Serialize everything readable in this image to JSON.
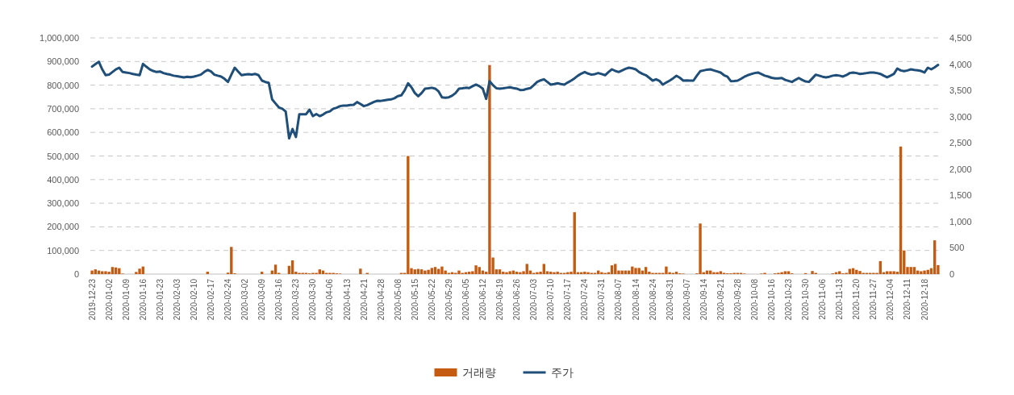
{
  "chart_data": {
    "type": "bar",
    "categories": [
      "2019-12-23",
      null,
      null,
      null,
      null,
      "2020-01-02",
      null,
      null,
      null,
      null,
      "2020-01-09",
      null,
      null,
      null,
      null,
      "2020-01-16",
      null,
      null,
      null,
      null,
      "2020-01-23",
      null,
      null,
      null,
      null,
      "2020-02-03",
      null,
      null,
      null,
      null,
      "2020-02-10",
      null,
      null,
      null,
      null,
      "2020-02-17",
      null,
      null,
      null,
      null,
      "2020-02-24",
      null,
      null,
      null,
      null,
      "2020-03-02",
      null,
      null,
      null,
      null,
      "2020-03-09",
      null,
      null,
      null,
      null,
      "2020-03-16",
      null,
      null,
      null,
      null,
      "2020-03-23",
      null,
      null,
      null,
      null,
      "2020-03-30",
      null,
      null,
      null,
      null,
      "2020-04-06",
      null,
      null,
      null,
      null,
      "2020-04-13",
      null,
      null,
      null,
      null,
      "2020-04-21",
      null,
      null,
      null,
      null,
      "2020-04-28",
      null,
      null,
      null,
      null,
      "2020-05-08",
      null,
      null,
      null,
      null,
      "2020-05-15",
      null,
      null,
      null,
      null,
      "2020-05-22",
      null,
      null,
      null,
      null,
      "2020-05-29",
      null,
      null,
      null,
      null,
      "2020-06-05",
      null,
      null,
      null,
      null,
      "2020-06-12",
      null,
      null,
      null,
      null,
      "2020-06-19",
      null,
      null,
      null,
      null,
      "2020-06-26",
      null,
      null,
      null,
      null,
      "2020-07-03",
      null,
      null,
      null,
      null,
      "2020-07-10",
      null,
      null,
      null,
      null,
      "2020-07-17",
      null,
      null,
      null,
      null,
      "2020-07-24",
      null,
      null,
      null,
      null,
      "2020-07-31",
      null,
      null,
      null,
      null,
      "2020-08-07",
      null,
      null,
      null,
      null,
      "2020-08-14",
      null,
      null,
      null,
      null,
      "2020-08-24",
      null,
      null,
      null,
      null,
      "2020-08-31",
      null,
      null,
      null,
      null,
      "2020-09-07",
      null,
      null,
      null,
      null,
      "2020-09-14",
      null,
      null,
      null,
      null,
      "2020-09-21",
      null,
      null,
      null,
      null,
      "2020-09-28",
      null,
      null,
      null,
      null,
      "2020-10-08",
      null,
      null,
      null,
      null,
      "2020-10-16",
      null,
      null,
      null,
      null,
      "2020-10-23",
      null,
      null,
      null,
      null,
      "2020-10-30",
      null,
      null,
      null,
      null,
      "2020-11-06",
      null,
      null,
      null,
      null,
      "2020-11-13",
      null,
      null,
      null,
      null,
      "2020-11-20",
      null,
      null,
      null,
      null,
      "2020-11-27",
      null,
      null,
      null,
      null,
      "2020-12-04",
      null,
      null,
      null,
      null,
      "2020-12-11",
      null,
      null,
      null,
      null,
      "2020-12-18",
      null,
      null,
      null,
      null
    ],
    "series": [
      {
        "name": "거래량",
        "color": "#c55a11",
        "values": [
          15000,
          20000,
          15000,
          12000,
          12000,
          10000,
          30000,
          28000,
          25000,
          2000,
          0,
          0,
          0,
          9000,
          23000,
          32000,
          0,
          0,
          0,
          0,
          0,
          0,
          0,
          0,
          0,
          0,
          0,
          0,
          0,
          0,
          0,
          0,
          0,
          0,
          10000,
          0,
          0,
          0,
          0,
          0,
          6000,
          115000,
          3000,
          0,
          0,
          0,
          0,
          0,
          0,
          0,
          10000,
          0,
          0,
          15000,
          40000,
          5000,
          0,
          0,
          35000,
          58000,
          10000,
          5000,
          5000,
          5000,
          3000,
          5000,
          5000,
          20000,
          15000,
          5000,
          5000,
          5000,
          3000,
          2000,
          0,
          0,
          0,
          0,
          0,
          23000,
          0,
          5000,
          0,
          0,
          0,
          0,
          0,
          0,
          0,
          0,
          0,
          5000,
          5000,
          500000,
          25000,
          20000,
          22000,
          20000,
          15000,
          18000,
          26000,
          30000,
          22000,
          32000,
          15000,
          5000,
          8000,
          5000,
          15000,
          5000,
          8000,
          10000,
          12000,
          37000,
          30000,
          15000,
          10000,
          885000,
          70000,
          20000,
          20000,
          10000,
          8000,
          12000,
          15000,
          10000,
          8000,
          12000,
          43000,
          15000,
          5000,
          8000,
          10000,
          43000,
          12000,
          10000,
          8000,
          10000,
          5000,
          5000,
          8000,
          10000,
          262000,
          8000,
          8000,
          10000,
          8000,
          5000,
          5000,
          15000,
          8000,
          5000,
          8000,
          37000,
          43000,
          15000,
          15000,
          15000,
          15000,
          32000,
          26000,
          26000,
          15000,
          30000,
          10000,
          5000,
          5000,
          5000,
          5000,
          32000,
          8000,
          5000,
          10000,
          3000,
          2000,
          0,
          0,
          0,
          3000,
          214000,
          8000,
          15000,
          15000,
          8000,
          8000,
          12000,
          5000,
          3000,
          3000,
          5000,
          5000,
          5000,
          2000,
          0,
          0,
          0,
          0,
          2000,
          5000,
          0,
          0,
          3000,
          5000,
          8000,
          12000,
          12000,
          3000,
          0,
          0,
          0,
          4000,
          0,
          13000,
          5000,
          0,
          0,
          0,
          0,
          3000,
          8000,
          12000,
          3000,
          5000,
          22000,
          25000,
          18000,
          13000,
          5000,
          5000,
          5000,
          5000,
          5000,
          55000,
          8000,
          12000,
          12000,
          12000,
          10000,
          540000,
          100000,
          30000,
          30000,
          30000,
          15000,
          12000,
          15000,
          18000,
          25000,
          143000,
          38000
        ]
      },
      {
        "name": "주가",
        "color": "#1f4e79",
        "type": "line",
        "axis": "y2",
        "values": [
          3953,
          4000,
          4045,
          3900,
          3789,
          3800,
          3850,
          3900,
          3932,
          3850,
          3840,
          3830,
          3814,
          3800,
          3789,
          4004,
          3950,
          3900,
          3870,
          3850,
          3860,
          3830,
          3814,
          3800,
          3780,
          3770,
          3760,
          3748,
          3760,
          3750,
          3763,
          3780,
          3800,
          3850,
          3891,
          3860,
          3800,
          3780,
          3763,
          3720,
          3661,
          3800,
          3932,
          3860,
          3789,
          3800,
          3810,
          3800,
          3814,
          3790,
          3686,
          3660,
          3645,
          3328,
          3250,
          3174,
          3150,
          3097,
          2586,
          2765,
          2611,
          3046,
          3046,
          3046,
          3133,
          3010,
          3050,
          3010,
          3040,
          3082,
          3100,
          3150,
          3170,
          3200,
          3210,
          3210,
          3220,
          3225,
          3277,
          3240,
          3200,
          3220,
          3250,
          3280,
          3302,
          3300,
          3310,
          3320,
          3328,
          3350,
          3390,
          3405,
          3500,
          3635,
          3560,
          3450,
          3389,
          3450,
          3533,
          3540,
          3550,
          3533,
          3480,
          3369,
          3360,
          3369,
          3400,
          3450,
          3533,
          3540,
          3550,
          3543,
          3580,
          3610,
          3580,
          3533,
          3338,
          3676,
          3600,
          3540,
          3533,
          3540,
          3550,
          3559,
          3545,
          3533,
          3507,
          3510,
          3530,
          3543,
          3600,
          3661,
          3690,
          3712,
          3660,
          3610,
          3620,
          3635,
          3620,
          3610,
          3650,
          3686,
          3730,
          3780,
          3820,
          3850,
          3820,
          3799,
          3810,
          3830,
          3810,
          3789,
          3850,
          3901,
          3870,
          3850,
          3880,
          3910,
          3932,
          3920,
          3901,
          3850,
          3814,
          3789,
          3740,
          3686,
          3712,
          3680,
          3610,
          3650,
          3686,
          3730,
          3778,
          3740,
          3686,
          3690,
          3686,
          3686,
          3780,
          3866,
          3880,
          3895,
          3901,
          3880,
          3860,
          3840,
          3789,
          3760,
          3676,
          3680,
          3686,
          3720,
          3760,
          3789,
          3810,
          3830,
          3840,
          3810,
          3780,
          3763,
          3740,
          3727,
          3730,
          3737,
          3700,
          3680,
          3661,
          3700,
          3737,
          3700,
          3670,
          3661,
          3730,
          3799,
          3780,
          3760,
          3748,
          3760,
          3780,
          3789,
          3780,
          3763,
          3790,
          3830,
          3840,
          3830,
          3814,
          3820,
          3830,
          3840,
          3840,
          3830,
          3814,
          3780,
          3748,
          3780,
          3814,
          3917,
          3880,
          3866,
          3880,
          3901,
          3890,
          3881,
          3870,
          3840,
          3932,
          3901,
          3940,
          3984
        ]
      }
    ],
    "ylim": [
      0,
      1000000
    ],
    "yticks": [
      {
        "value": 0,
        "label": "0"
      },
      {
        "value": 100000,
        "label": "100,000"
      },
      {
        "value": 200000,
        "label": "200,000"
      },
      {
        "value": 300000,
        "label": "300,000"
      },
      {
        "value": 400000,
        "label": "400,000"
      },
      {
        "value": 500000,
        "label": "500,000"
      },
      {
        "value": 600000,
        "label": "600,000"
      },
      {
        "value": 700000,
        "label": "700,000"
      },
      {
        "value": 800000,
        "label": "800,000"
      },
      {
        "value": 900000,
        "label": "900,000"
      },
      {
        "value": 1000000,
        "label": "1,000,000"
      }
    ],
    "y2lim": [
      0,
      4500
    ],
    "y2ticks": [
      0,
      {
        "value": 500,
        "label": "500"
      },
      {
        "value": 1000,
        "label": "1,000"
      },
      {
        "value": 1500,
        "label": "1,500"
      },
      {
        "value": 2000,
        "label": "2,000"
      },
      {
        "value": 2500,
        "label": "2,500"
      },
      {
        "value": 3000,
        "label": "3,000"
      },
      {
        "value": 3500,
        "label": "3,500"
      },
      {
        "value": 4000,
        "label": "4,000"
      },
      {
        "value": 4500,
        "label": "4,500"
      }
    ],
    "grid": "y",
    "legend": "bottom"
  }
}
